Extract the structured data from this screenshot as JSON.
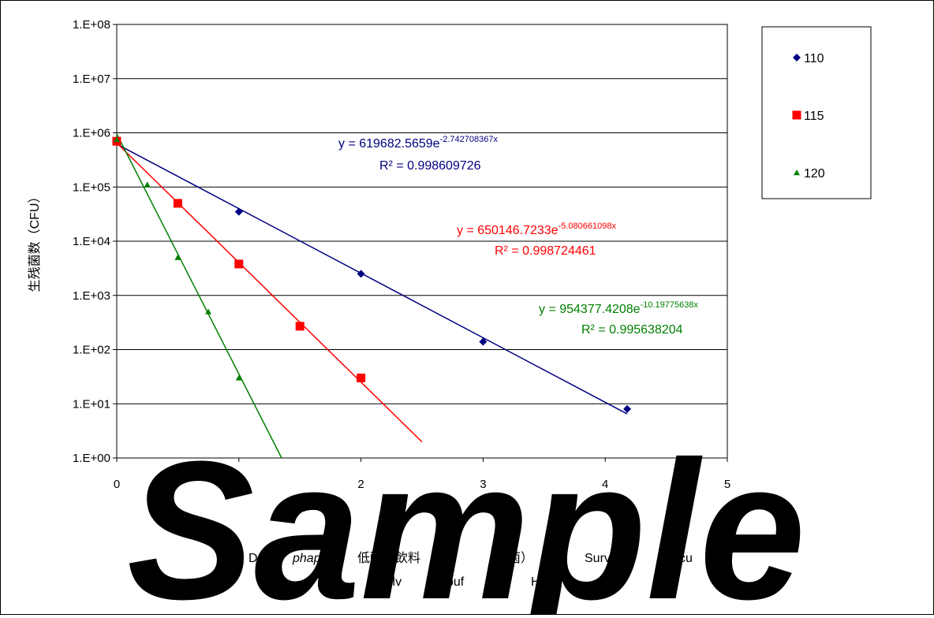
{
  "chart_data": {
    "type": "scatter",
    "title": "",
    "ylabel": "生残菌数（CFU）",
    "xlabel_parts": [
      "D",
      "phaps",
      "低酸",
      "飲料",
      "菌）",
      "Surv",
      "cu"
    ],
    "xlabel_line2_parts": [
      "cllv",
      "buf",
      "H4"
    ],
    "xlim": [
      0,
      5
    ],
    "ylim": [
      1,
      100000000
    ],
    "yscale": "log",
    "x_ticks": [
      "0",
      "1",
      "2",
      "3",
      "4",
      "5"
    ],
    "y_ticks": [
      "1.E+00",
      "1.E+01",
      "1.E+02",
      "1.E+03",
      "1.E+04",
      "1.E+05",
      "1.E+06",
      "1.E+07",
      "1.E+08"
    ],
    "grid": "horizontal",
    "legend_position": "right",
    "series": [
      {
        "name": "110",
        "color": "#000080",
        "marker": "diamond",
        "x": [
          0,
          1,
          2,
          3,
          4.18
        ],
        "y": [
          700000,
          35000,
          2500,
          140,
          8
        ],
        "trend": {
          "a": 619682.5659,
          "b": -2.742708367,
          "x_end": 4.18
        },
        "equation": "y = 619682.5659e",
        "exponent": "-2.742708367x",
        "r2": "R² = 0.998609726"
      },
      {
        "name": "115",
        "color": "#ff0000",
        "marker": "square",
        "x": [
          0,
          0.5,
          1,
          1.5,
          2
        ],
        "y": [
          700000,
          50000,
          3800,
          270,
          30
        ],
        "trend": {
          "a": 650146.7233,
          "b": -5.080661098,
          "x_end": 2.5
        },
        "equation": "y = 650146.7233e",
        "exponent": "-5.080661098x",
        "r2": "R² = 0.998724461"
      },
      {
        "name": "120",
        "color": "#008000",
        "marker": "triangle",
        "x": [
          0,
          0.25,
          0.5,
          0.75,
          1
        ],
        "y": [
          750000,
          110000,
          5000,
          500,
          30
        ],
        "trend": {
          "a": 954377.4208,
          "b": -10.19775638,
          "x_end": 1.36
        },
        "equation": "y = 954377.4208e",
        "exponent": "-10.19775638x",
        "r2": "R² = 0.995638204"
      }
    ]
  },
  "watermark": "Sample"
}
